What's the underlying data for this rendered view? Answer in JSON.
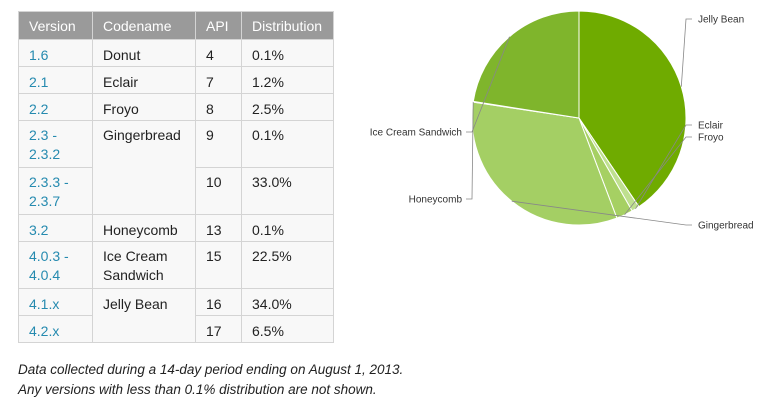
{
  "table": {
    "headers": [
      "Version",
      "Codename",
      "API",
      "Distribution"
    ],
    "rows": [
      {
        "version": "1.6",
        "codename": "Donut",
        "api": "4",
        "distribution": "0.1%"
      },
      {
        "version": "2.1",
        "codename": "Eclair",
        "api": "7",
        "distribution": "1.2%"
      },
      {
        "version": "2.2",
        "codename": "Froyo",
        "api": "8",
        "distribution": "2.5%"
      },
      {
        "version": "2.3 - 2.3.2",
        "codename": "Gingerbread",
        "api": "9",
        "distribution": "0.1%"
      },
      {
        "version": "2.3.3 - 2.3.7",
        "codename": "",
        "api": "10",
        "distribution": "33.0%"
      },
      {
        "version": "3.2",
        "codename": "Honeycomb",
        "api": "13",
        "distribution": "0.1%"
      },
      {
        "version": "4.0.3 - 4.0.4",
        "codename": "Ice Cream Sandwich",
        "api": "15",
        "distribution": "22.5%"
      },
      {
        "version": "4.1.x",
        "codename": "Jelly Bean",
        "api": "16",
        "distribution": "34.0%"
      },
      {
        "version": "4.2.x",
        "codename": "",
        "api": "17",
        "distribution": "6.5%"
      }
    ]
  },
  "footnote": {
    "line1": "Data collected during a 14-day period ending on August 1, 2013.",
    "line2": "Any versions with less than 0.1% distribution are not shown."
  },
  "chart_data": {
    "type": "pie",
    "title": "",
    "slices": [
      {
        "label": "Jelly Bean",
        "value": 40.5,
        "color": "#6fab00"
      },
      {
        "label": "Eclair",
        "value": 1.2,
        "color": "#bfe08f"
      },
      {
        "label": "Froyo",
        "value": 2.5,
        "color": "#a6d063"
      },
      {
        "label": "Gingerbread",
        "value": 33.1,
        "color": "#a4cf64"
      },
      {
        "label": "Honeycomb",
        "value": 0.1,
        "color": "#8dbf3e"
      },
      {
        "label": "Ice Cream Sandwich",
        "value": 22.5,
        "color": "#7fb52c"
      }
    ],
    "start_angle_deg": -90
  }
}
